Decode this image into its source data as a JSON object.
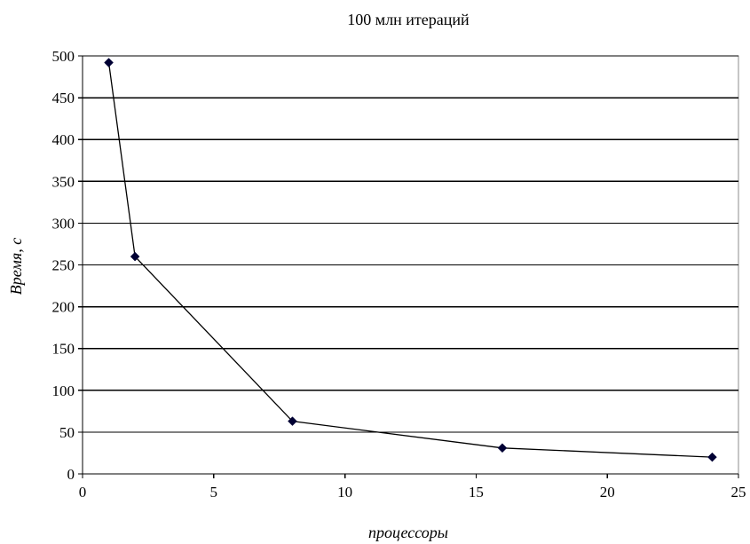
{
  "chart_data": {
    "type": "line",
    "title": "100 млн итераций",
    "xlabel": "процессоры",
    "ylabel": "Время, с",
    "xlim": [
      0,
      25
    ],
    "ylim": [
      0,
      500
    ],
    "x_ticks": [
      0,
      5,
      10,
      15,
      20,
      25
    ],
    "y_ticks": [
      0,
      50,
      100,
      150,
      200,
      250,
      300,
      350,
      400,
      450,
      500
    ],
    "grid": "horizontal",
    "legend": "none",
    "series": [
      {
        "x": [
          1,
          2,
          8,
          16,
          24
        ],
        "values": [
          492,
          260,
          63,
          31,
          20
        ],
        "color": "#000033",
        "marker": "diamond"
      }
    ]
  }
}
